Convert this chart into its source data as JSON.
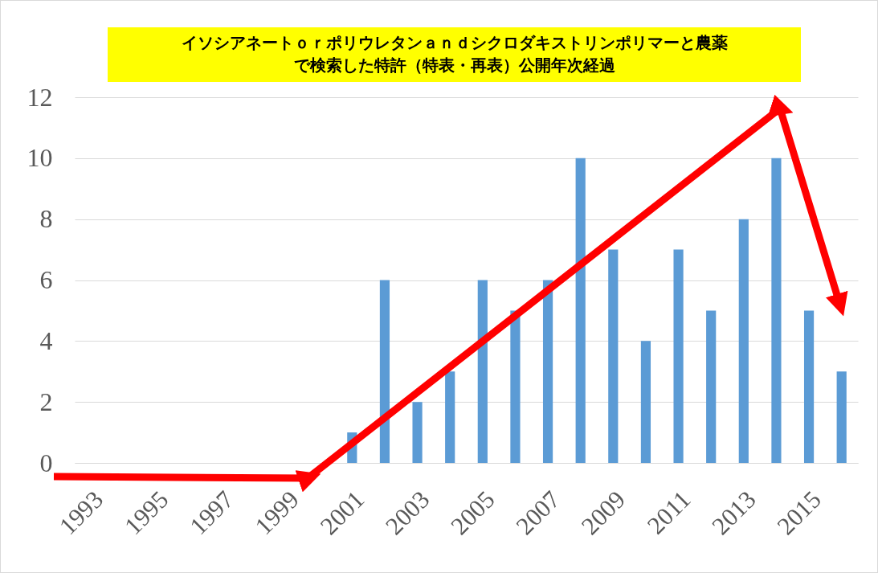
{
  "chart_data": {
    "type": "bar",
    "title": "イソシアネートｏｒポリウレタンａｎｄシクロダキストリンポリマーと農薬で検索した特許（特表・再表）公開年次経過",
    "categories": [
      "1993",
      null,
      "1995",
      null,
      "1997",
      null,
      "1999",
      null,
      "2001",
      null,
      "2003",
      null,
      "2005",
      null,
      "2007",
      null,
      "2009",
      null,
      "2011",
      null,
      "2013",
      null,
      "2015",
      null
    ],
    "values": [
      0,
      0,
      0,
      0,
      0,
      0,
      0,
      0,
      1,
      6,
      2,
      3,
      6,
      5,
      6,
      10,
      7,
      4,
      7,
      5,
      8,
      10,
      5,
      3
    ],
    "color": "#5b9bd5",
    "ylim": [
      0,
      12
    ],
    "yticks": [
      0,
      2,
      4,
      6,
      8,
      10,
      12
    ],
    "grid": "y"
  }
}
